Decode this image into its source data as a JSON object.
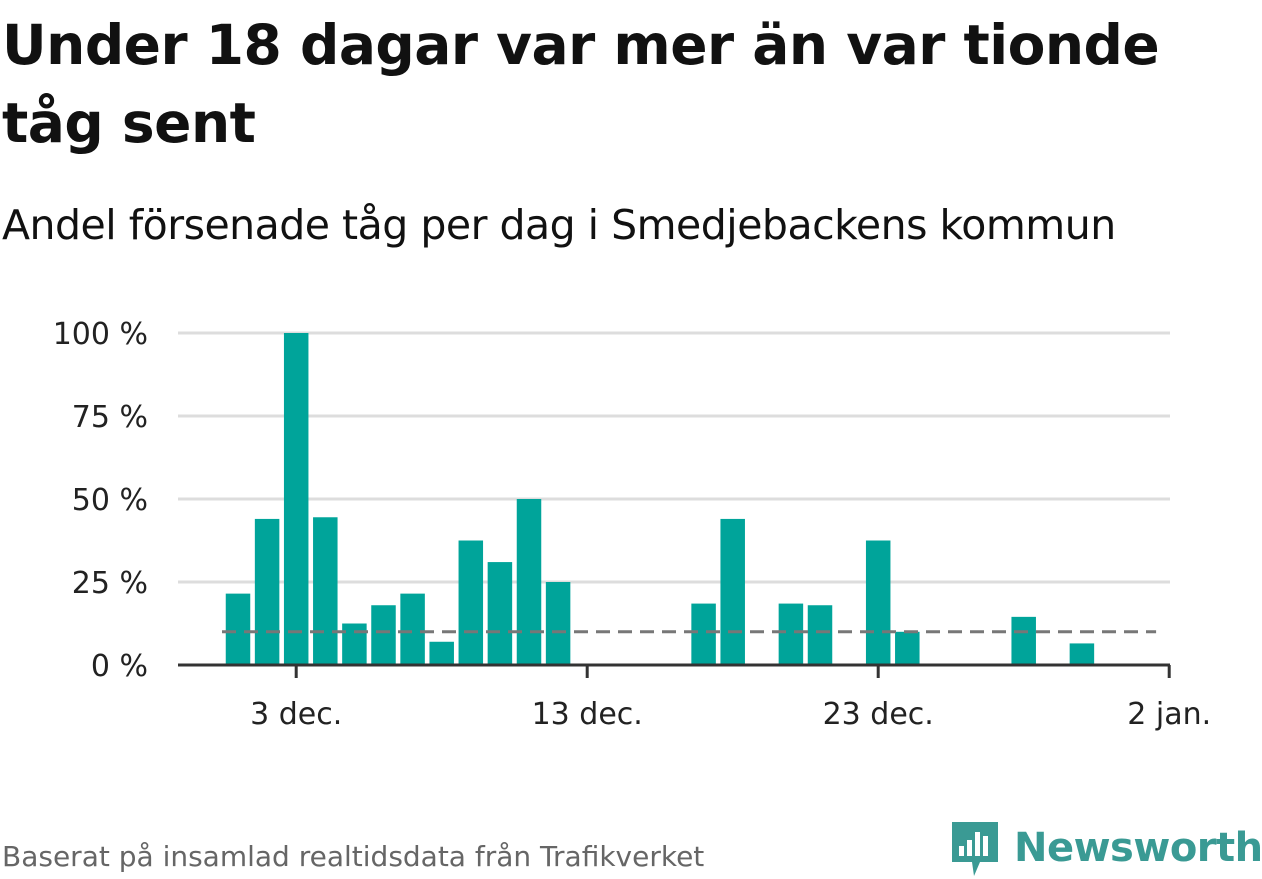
{
  "header": {
    "title": "Under 18 dagar var mer än var tionde tåg sent",
    "subtitle": "Andel försenade tåg per dag i Smedjebackens kommun"
  },
  "footer": {
    "source": "Baserat på insamlad realtidsdata från Trafikverket",
    "brand": "Newsworthy"
  },
  "colors": {
    "bar": "#00a49a",
    "reference_line": "#777777",
    "grid": "#dddddd",
    "brand": "#3a9a94"
  },
  "chart_data": {
    "type": "bar",
    "title": "Andel försenade tåg per dag i Smedjebackens kommun",
    "x_type": "date",
    "x_ticks": [
      {
        "date": "3 dec.",
        "label": "3 dec."
      },
      {
        "date": "13 dec.",
        "label": "13 dec."
      },
      {
        "date": "23 dec.",
        "label": "23 dec."
      },
      {
        "date": "2 jan.",
        "label": "2 jan."
      }
    ],
    "y_ticks": [
      {
        "value": 0,
        "label": "0 %"
      },
      {
        "value": 25,
        "label": "25 %"
      },
      {
        "value": 50,
        "label": "50 %"
      },
      {
        "value": 75,
        "label": "75 %"
      },
      {
        "value": 100,
        "label": "100 %"
      }
    ],
    "ylim": [
      0,
      100
    ],
    "grid": true,
    "reference_line": {
      "value": 10,
      "style": "dashed",
      "from": "1 dec.",
      "to": "1 jan."
    },
    "series": [
      {
        "values": [
          {
            "date": "1 dec.",
            "value": 21.5
          },
          {
            "date": "2 dec.",
            "value": 44
          },
          {
            "date": "3 dec.",
            "value": 100
          },
          {
            "date": "4 dec.",
            "value": 44.5
          },
          {
            "date": "5 dec.",
            "value": 12.5
          },
          {
            "date": "6 dec.",
            "value": 18
          },
          {
            "date": "7 dec.",
            "value": 21.5
          },
          {
            "date": "8 dec.",
            "value": 7
          },
          {
            "date": "9 dec.",
            "value": 37.5
          },
          {
            "date": "10 dec.",
            "value": 31
          },
          {
            "date": "11 dec.",
            "value": 50
          },
          {
            "date": "12 dec.",
            "value": 25
          },
          {
            "date": "13 dec.",
            "value": 0
          },
          {
            "date": "14 dec.",
            "value": 0
          },
          {
            "date": "15 dec.",
            "value": 0
          },
          {
            "date": "16 dec.",
            "value": 0
          },
          {
            "date": "17 dec.",
            "value": 18.5
          },
          {
            "date": "18 dec.",
            "value": 44
          },
          {
            "date": "19 dec.",
            "value": 0
          },
          {
            "date": "20 dec.",
            "value": 18.5
          },
          {
            "date": "21 dec.",
            "value": 18
          },
          {
            "date": "22 dec.",
            "value": 0
          },
          {
            "date": "23 dec.",
            "value": 37.5
          },
          {
            "date": "24 dec.",
            "value": 10
          },
          {
            "date": "25 dec.",
            "value": 0
          },
          {
            "date": "26 dec.",
            "value": 0
          },
          {
            "date": "27 dec.",
            "value": 0
          },
          {
            "date": "28 dec.",
            "value": 14.5
          },
          {
            "date": "29 dec.",
            "value": 0
          },
          {
            "date": "30 dec.",
            "value": 6.5
          }
        ]
      }
    ]
  }
}
